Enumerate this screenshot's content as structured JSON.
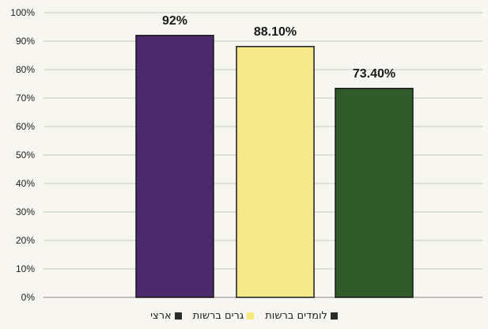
{
  "chart_data": {
    "type": "bar",
    "categories": [
      "לומדים ברשות",
      "גרים ברשות",
      "ארצי"
    ],
    "values": [
      92,
      88.1,
      73.4
    ],
    "data_labels": [
      "92%",
      "88.10%",
      "73.40%"
    ],
    "colors": [
      "#4a2a6a",
      "#f4e98a",
      "#2f5a2a"
    ],
    "ylim": [
      0,
      100
    ],
    "yticks": [
      "0%",
      "10%",
      "20%",
      "30%",
      "40%",
      "50%",
      "60%",
      "70%",
      "80%",
      "90%",
      "100%"
    ],
    "grid": true,
    "legend_position": "bottom",
    "title": "",
    "xlabel": "",
    "ylabel": ""
  }
}
